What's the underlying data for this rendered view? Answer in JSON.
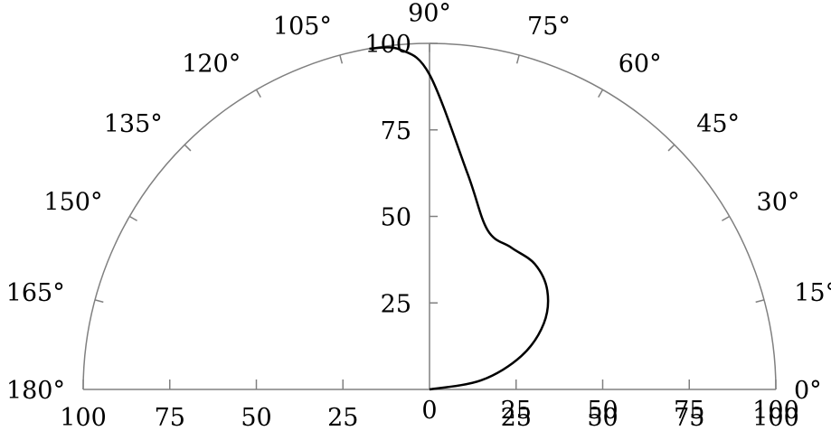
{
  "chart_data": {
    "type": "line",
    "projection": "polar-half",
    "title": "",
    "xlabel": "",
    "ylabel": "",
    "angle_range_deg": [
      0,
      180
    ],
    "radius_range": [
      0,
      100
    ],
    "angle_ticks": [
      0,
      15,
      30,
      45,
      60,
      75,
      90,
      105,
      120,
      135,
      150,
      165,
      180
    ],
    "angle_tick_labels": [
      "0°",
      "15°",
      "30°",
      "45°",
      "60°",
      "75°",
      "90°",
      "105°",
      "120°",
      "135°",
      "150°",
      "165°",
      "180°"
    ],
    "radius_ticks": [
      0,
      25,
      50,
      75,
      100
    ],
    "radius_tick_labels": [
      "0",
      "25",
      "50",
      "75",
      "100"
    ],
    "baseline_right_labels": [
      "25",
      "50",
      "75",
      "100"
    ],
    "baseline_right_labels_overlay": [
      "25",
      "50",
      "75",
      "100"
    ],
    "baseline_left_labels": [
      "100",
      "75",
      "50",
      "25"
    ],
    "series": [
      {
        "color": "#000000",
        "points_deg_r": [
          [
            0,
            0
          ],
          [
            10,
            15.1
          ],
          [
            20,
            28.2
          ],
          [
            30,
            38.1
          ],
          [
            40,
            44.4
          ],
          [
            50,
            47.3
          ],
          [
            60,
            47.3
          ],
          [
            70,
            49.0
          ],
          [
            80,
            63.3
          ],
          [
            90,
            91.0
          ],
          [
            95,
            98.6
          ],
          [
            100,
            100
          ]
        ]
      }
    ],
    "frame_color": "#808080"
  }
}
